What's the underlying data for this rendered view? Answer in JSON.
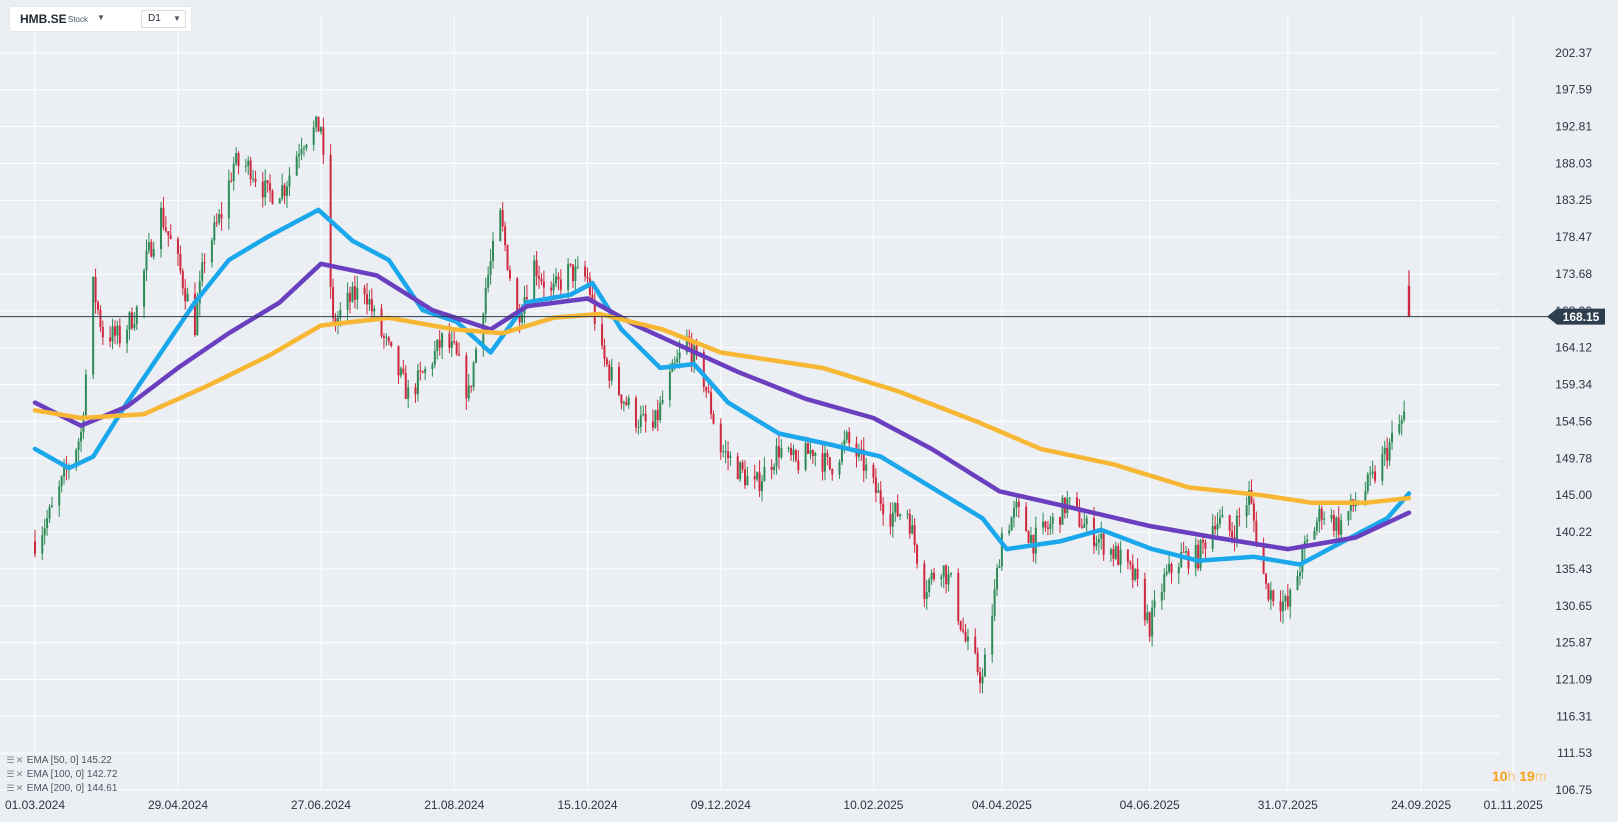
{
  "header": {
    "symbol": "HMB.SE",
    "instrument_type": "Stock",
    "timeframe": "D1",
    "symbol_caret_icon": "caret-down-icon",
    "timeframe_caret_icon": "caret-down-icon"
  },
  "indicators": [
    {
      "label": "EMA [50,  0]",
      "value": "145.22",
      "color": "#1aa7ec",
      "menu_icon": "list-icon",
      "remove_icon": "close-icon"
    },
    {
      "label": "EMA [100,  0]",
      "value": "142.72",
      "color": "#6a3fbf",
      "menu_icon": "list-icon",
      "remove_icon": "close-icon"
    },
    {
      "label": "EMA [200,  0]",
      "value": "144.61",
      "color": "#f7b733",
      "menu_icon": "list-icon",
      "remove_icon": "close-icon"
    }
  ],
  "countdown": {
    "hours": "10",
    "hours_unit": "h",
    "minutes": "19",
    "minutes_unit": "m"
  },
  "colors": {
    "background": "#ebeef2",
    "grid": "#ffffff",
    "up_candle": "#2e8b57",
    "down_candle": "#d0283e",
    "price_line": "#2d3e4e",
    "price_tag": "#2d3e4e",
    "axis_text": "#2a3644"
  },
  "chart_data": {
    "type": "candlestick",
    "instrument": "HMB.SE",
    "timeframe": "D1",
    "last_price": 168.15,
    "ylim": [
      106.75,
      207.15
    ],
    "y_ticks": [
      "202.37",
      "197.59",
      "192.81",
      "188.03",
      "183.25",
      "178.47",
      "173.68",
      "168.90",
      "164.12",
      "159.34",
      "154.56",
      "149.78",
      "145.00",
      "140.22",
      "135.43",
      "130.65",
      "125.87",
      "121.09",
      "116.31",
      "111.53",
      "106.75"
    ],
    "x_ticks": [
      "01.03.2024",
      "29.04.2024",
      "27.06.2024",
      "21.08.2024",
      "15.10.2024",
      "09.12.2024",
      "10.02.2025",
      "04.04.2025",
      "04.06.2025",
      "31.07.2025",
      "24.09.2025",
      "01.11.2025"
    ],
    "x_range": [
      "2024-03-01",
      "2025-11-10"
    ],
    "close_path": [
      [
        "2024-03-01",
        139.0
      ],
      [
        "2024-03-08",
        143.0
      ],
      [
        "2024-03-15",
        149.0
      ],
      [
        "2024-03-20",
        153.0
      ],
      [
        "2024-03-25",
        172.0
      ],
      [
        "2024-03-29",
        166.0
      ],
      [
        "2024-04-05",
        165.5
      ],
      [
        "2024-04-12",
        169.0
      ],
      [
        "2024-04-16",
        175.5
      ],
      [
        "2024-04-22",
        181.5
      ],
      [
        "2024-04-29",
        175.0
      ],
      [
        "2024-05-06",
        167.0
      ],
      [
        "2024-05-10",
        176.0
      ],
      [
        "2024-05-17",
        181.5
      ],
      [
        "2024-05-22",
        188.0
      ],
      [
        "2024-05-29",
        187.5
      ],
      [
        "2024-06-05",
        184.0
      ],
      [
        "2024-06-12",
        185.0
      ],
      [
        "2024-06-19",
        191.0
      ],
      [
        "2024-06-27",
        193.0
      ],
      [
        "2024-07-02",
        167.0
      ],
      [
        "2024-07-08",
        170.0
      ],
      [
        "2024-07-15",
        172.0
      ],
      [
        "2024-07-19",
        168.0
      ],
      [
        "2024-07-26",
        163.0
      ],
      [
        "2024-08-02",
        158.0
      ],
      [
        "2024-08-09",
        161.0
      ],
      [
        "2024-08-16",
        165.0
      ],
      [
        "2024-08-21",
        163.5
      ],
      [
        "2024-08-27",
        158.0
      ],
      [
        "2024-09-03",
        172.0
      ],
      [
        "2024-09-09",
        181.0
      ],
      [
        "2024-09-16",
        168.0
      ],
      [
        "2024-09-23",
        175.0
      ],
      [
        "2024-09-30",
        171.0
      ],
      [
        "2024-10-07",
        174.0
      ],
      [
        "2024-10-15",
        173.0
      ],
      [
        "2024-10-21",
        163.0
      ],
      [
        "2024-10-28",
        158.5
      ],
      [
        "2024-11-04",
        155.0
      ],
      [
        "2024-11-11",
        153.5
      ],
      [
        "2024-11-18",
        160.0
      ],
      [
        "2024-11-25",
        165.0
      ],
      [
        "2024-12-02",
        160.0
      ],
      [
        "2024-12-09",
        151.0
      ],
      [
        "2024-12-16",
        148.5
      ],
      [
        "2024-12-23",
        146.0
      ],
      [
        "2025-01-02",
        151.0
      ],
      [
        "2025-01-09",
        149.0
      ],
      [
        "2025-01-16",
        151.0
      ],
      [
        "2025-01-23",
        148.5
      ],
      [
        "2025-01-30",
        152.0
      ],
      [
        "2025-02-06",
        149.0
      ],
      [
        "2025-02-10",
        146.0
      ],
      [
        "2025-02-17",
        142.5
      ],
      [
        "2025-02-24",
        143.0
      ],
      [
        "2025-03-03",
        133.0
      ],
      [
        "2025-03-10",
        136.0
      ],
      [
        "2025-03-14",
        133.5
      ],
      [
        "2025-03-20",
        126.0
      ],
      [
        "2025-03-27",
        121.0
      ],
      [
        "2025-04-01",
        132.0
      ],
      [
        "2025-04-04",
        140.0
      ],
      [
        "2025-04-10",
        143.0
      ],
      [
        "2025-04-17",
        139.0
      ],
      [
        "2025-04-24",
        141.0
      ],
      [
        "2025-05-01",
        144.0
      ],
      [
        "2025-05-08",
        141.0
      ],
      [
        "2025-05-15",
        139.0
      ],
      [
        "2025-05-22",
        137.0
      ],
      [
        "2025-05-29",
        134.0
      ],
      [
        "2025-06-04",
        128.0
      ],
      [
        "2025-06-10",
        134.0
      ],
      [
        "2025-06-17",
        137.0
      ],
      [
        "2025-06-24",
        137.0
      ],
      [
        "2025-07-01",
        142.0
      ],
      [
        "2025-07-08",
        140.0
      ],
      [
        "2025-07-15",
        145.0
      ],
      [
        "2025-07-22",
        133.0
      ],
      [
        "2025-07-31",
        130.5
      ],
      [
        "2025-08-07",
        138.0
      ],
      [
        "2025-08-14",
        143.0
      ],
      [
        "2025-08-21",
        141.0
      ],
      [
        "2025-08-28",
        144.0
      ],
      [
        "2025-09-04",
        147.0
      ],
      [
        "2025-09-11",
        151.5
      ],
      [
        "2025-09-16",
        154.5
      ],
      [
        "2025-09-18",
        156.0
      ],
      [
        "2025-09-19",
        168.15
      ]
    ],
    "series": [
      {
        "name": "EMA [50,  0]",
        "color": "#1aa7ec",
        "points": [
          [
            "2024-03-01",
            151.0
          ],
          [
            "2024-03-15",
            148.5
          ],
          [
            "2024-03-25",
            150.0
          ],
          [
            "2024-04-08",
            157.0
          ],
          [
            "2024-04-22",
            163.5
          ],
          [
            "2024-05-06",
            170.0
          ],
          [
            "2024-05-20",
            175.5
          ],
          [
            "2024-06-05",
            178.5
          ],
          [
            "2024-06-26",
            182.0
          ],
          [
            "2024-07-10",
            178.0
          ],
          [
            "2024-07-25",
            175.5
          ],
          [
            "2024-08-08",
            169.0
          ],
          [
            "2024-08-22",
            167.5
          ],
          [
            "2024-09-05",
            163.5
          ],
          [
            "2024-09-20",
            170.0
          ],
          [
            "2024-10-08",
            171.0
          ],
          [
            "2024-10-17",
            172.5
          ],
          [
            "2024-10-29",
            166.5
          ],
          [
            "2024-11-14",
            161.5
          ],
          [
            "2024-11-28",
            162.0
          ],
          [
            "2024-12-12",
            157.0
          ],
          [
            "2025-01-02",
            153.0
          ],
          [
            "2025-01-24",
            151.5
          ],
          [
            "2025-02-13",
            150.0
          ],
          [
            "2025-03-06",
            146.0
          ],
          [
            "2025-03-27",
            142.0
          ],
          [
            "2025-04-06",
            138.0
          ],
          [
            "2025-04-28",
            139.0
          ],
          [
            "2025-05-15",
            140.5
          ],
          [
            "2025-06-05",
            138.0
          ],
          [
            "2025-06-24",
            136.5
          ],
          [
            "2025-07-17",
            137.0
          ],
          [
            "2025-08-05",
            136.0
          ],
          [
            "2025-08-26",
            139.5
          ],
          [
            "2025-09-10",
            142.0
          ],
          [
            "2025-09-19",
            145.22
          ]
        ]
      },
      {
        "name": "EMA [100,  0]",
        "color": "#6a3fbf",
        "points": [
          [
            "2024-03-01",
            157.0
          ],
          [
            "2024-03-20",
            154.0
          ],
          [
            "2024-04-08",
            156.5
          ],
          [
            "2024-04-29",
            161.5
          ],
          [
            "2024-05-20",
            166.0
          ],
          [
            "2024-06-10",
            170.0
          ],
          [
            "2024-06-27",
            175.0
          ],
          [
            "2024-07-20",
            173.5
          ],
          [
            "2024-08-12",
            169.0
          ],
          [
            "2024-09-05",
            166.5
          ],
          [
            "2024-09-20",
            169.5
          ],
          [
            "2024-10-15",
            170.5
          ],
          [
            "2024-11-04",
            167.0
          ],
          [
            "2024-11-25",
            164.0
          ],
          [
            "2024-12-16",
            161.0
          ],
          [
            "2025-01-13",
            157.5
          ],
          [
            "2025-02-10",
            155.0
          ],
          [
            "2025-03-06",
            151.0
          ],
          [
            "2025-04-03",
            145.5
          ],
          [
            "2025-05-01",
            143.5
          ],
          [
            "2025-06-04",
            141.0
          ],
          [
            "2025-07-01",
            139.5
          ],
          [
            "2025-07-31",
            138.0
          ],
          [
            "2025-08-28",
            139.5
          ],
          [
            "2025-09-19",
            142.72
          ]
        ]
      },
      {
        "name": "EMA [200,  0]",
        "color": "#f7b733",
        "points": [
          [
            "2024-03-01",
            156.0
          ],
          [
            "2024-03-20",
            155.0
          ],
          [
            "2024-04-15",
            155.5
          ],
          [
            "2024-05-10",
            159.0
          ],
          [
            "2024-06-05",
            163.0
          ],
          [
            "2024-06-27",
            167.0
          ],
          [
            "2024-07-25",
            168.0
          ],
          [
            "2024-08-21",
            166.5
          ],
          [
            "2024-09-10",
            166.0
          ],
          [
            "2024-10-01",
            168.0
          ],
          [
            "2024-10-20",
            168.5
          ],
          [
            "2024-11-15",
            166.5
          ],
          [
            "2024-12-09",
            163.5
          ],
          [
            "2025-01-20",
            161.5
          ],
          [
            "2025-02-20",
            158.5
          ],
          [
            "2025-03-25",
            154.5
          ],
          [
            "2025-04-20",
            151.0
          ],
          [
            "2025-05-20",
            149.0
          ],
          [
            "2025-06-20",
            146.0
          ],
          [
            "2025-07-20",
            145.0
          ],
          [
            "2025-08-10",
            144.0
          ],
          [
            "2025-09-01",
            144.0
          ],
          [
            "2025-09-19",
            144.61
          ]
        ]
      }
    ]
  }
}
